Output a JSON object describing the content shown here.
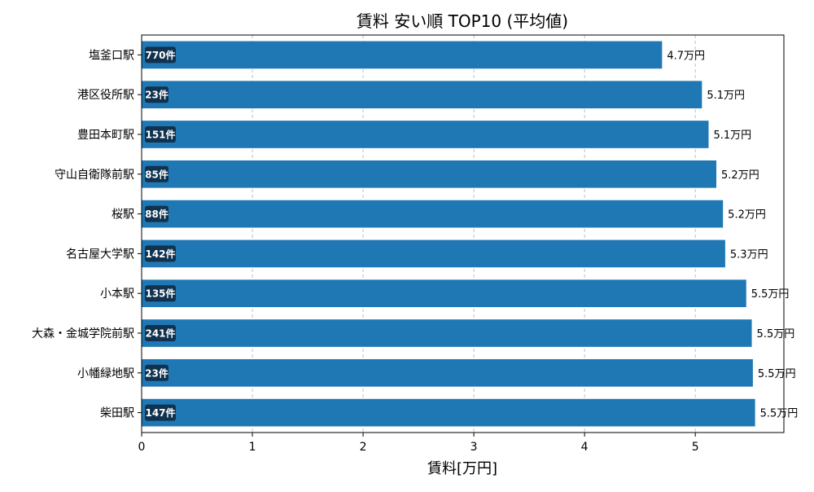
{
  "chart_data": {
    "type": "bar",
    "orientation": "horizontal",
    "title": "賃料 安い順 TOP10 (平均値)",
    "xlabel": "賃料[万円]",
    "ylabel": "",
    "xlim": [
      0,
      5.8
    ],
    "xticks": [
      "0",
      "1",
      "2",
      "3",
      "4",
      "5"
    ],
    "grid": "x-dashed",
    "bar_color": "#1f77b4",
    "count_badge_color": "#10324f",
    "categories": [
      "塩釜口駅",
      "港区役所駅",
      "豊田本町駅",
      "守山自衛隊前駅",
      "桜駅",
      "名古屋大学駅",
      "小本駅",
      "大森・金城学院前駅",
      "小幡緑地駅",
      "柴田駅"
    ],
    "values": [
      4.7,
      5.06,
      5.12,
      5.19,
      5.25,
      5.27,
      5.46,
      5.51,
      5.52,
      5.54
    ],
    "value_labels": [
      "4.7万円",
      "5.1万円",
      "5.1万円",
      "5.2万円",
      "5.2万円",
      "5.3万円",
      "5.5万円",
      "5.5万円",
      "5.5万円",
      "5.5万円"
    ],
    "counts": [
      "770件",
      "23件",
      "151件",
      "85件",
      "88件",
      "142件",
      "135件",
      "241件",
      "23件",
      "147件"
    ]
  }
}
